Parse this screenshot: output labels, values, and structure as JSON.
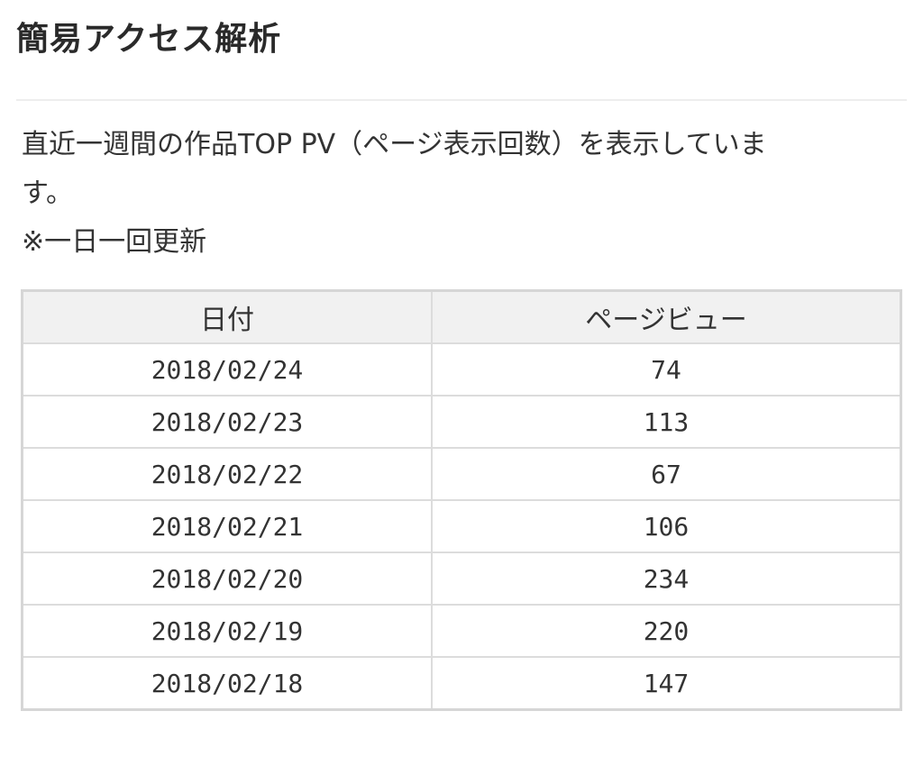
{
  "page": {
    "title": "簡易アクセス解析",
    "description_line1": "直近一週間の作品TOP PV（ページ表示回数）を表示していま",
    "description_line2": "す。",
    "note": "※一日一回更新"
  },
  "table": {
    "headers": {
      "date": "日付",
      "views": "ページビュー"
    },
    "rows": [
      {
        "date": "2018/02/24",
        "views": "74"
      },
      {
        "date": "2018/02/23",
        "views": "113"
      },
      {
        "date": "2018/02/22",
        "views": "67"
      },
      {
        "date": "2018/02/21",
        "views": "106"
      },
      {
        "date": "2018/02/20",
        "views": "234"
      },
      {
        "date": "2018/02/19",
        "views": "220"
      },
      {
        "date": "2018/02/18",
        "views": "147"
      }
    ]
  }
}
